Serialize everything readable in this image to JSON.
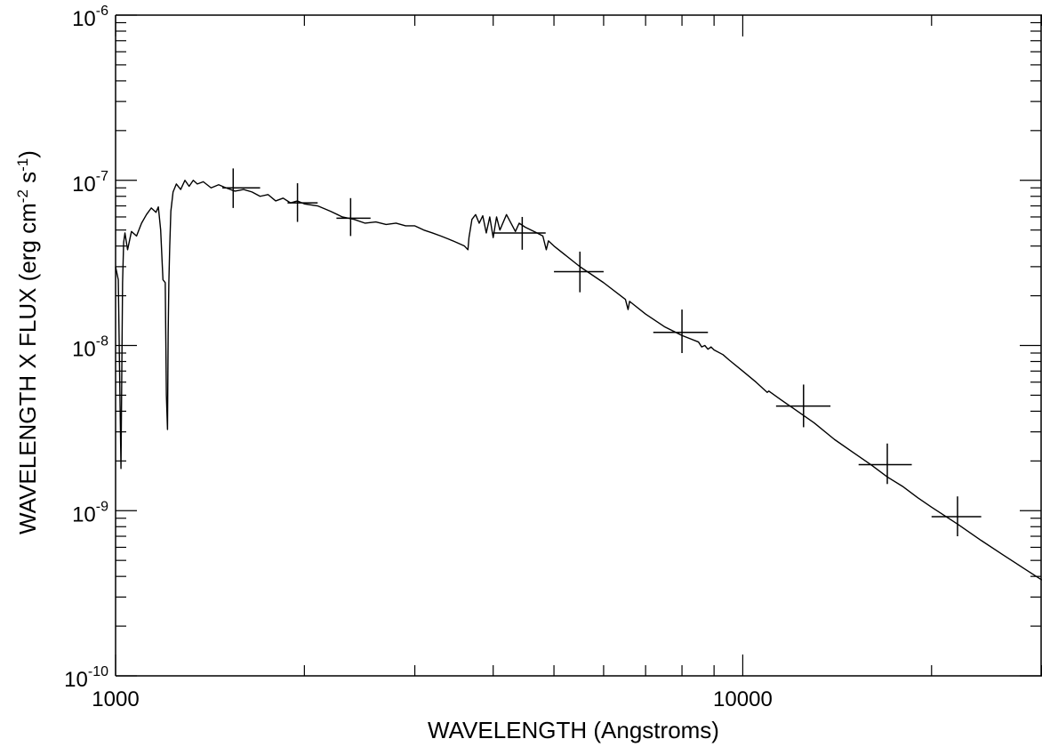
{
  "chart_data": {
    "type": "line",
    "title": "",
    "xlabel": "WAVELENGTH (Angstroms)",
    "ylabel_parts": [
      {
        "text": "WAVELENGTH X FLUX (erg cm",
        "sup": false
      },
      {
        "text": "-2",
        "sup": true
      },
      {
        "text": " s",
        "sup": false
      },
      {
        "text": "-1",
        "sup": true
      },
      {
        "text": ")",
        "sup": false
      }
    ],
    "x_scale": "log",
    "y_scale": "log",
    "xlim": [
      1000,
      30000
    ],
    "ylim": [
      1e-10,
      1e-06
    ],
    "x_ticks": [
      {
        "value": 1000,
        "label": "1000"
      },
      {
        "value": 10000,
        "label": "10000"
      }
    ],
    "y_ticks": [
      {
        "value": 1e-10,
        "base": "10",
        "exp": "-10"
      },
      {
        "value": 1e-09,
        "base": "10",
        "exp": "-9"
      },
      {
        "value": 1e-08,
        "base": "10",
        "exp": "-8"
      },
      {
        "value": 1e-07,
        "base": "10",
        "exp": "-7"
      },
      {
        "value": 1e-06,
        "base": "10",
        "exp": "-6"
      }
    ],
    "grid": false,
    "legend": "none",
    "series": [
      {
        "kind": "line",
        "x": [
          1000,
          1010,
          1020,
          1026,
          1030,
          1035,
          1045,
          1060,
          1080,
          1100,
          1120,
          1140,
          1160,
          1170,
          1180,
          1190,
          1200,
          1205,
          1210,
          1213,
          1216,
          1220,
          1225,
          1235,
          1250,
          1270,
          1290,
          1310,
          1330,
          1350,
          1380,
          1420,
          1460,
          1500,
          1550,
          1600,
          1650,
          1700,
          1750,
          1800,
          1850,
          1900,
          1950,
          2000,
          2100,
          2200,
          2300,
          2400,
          2500,
          2600,
          2700,
          2800,
          2900,
          3000,
          3100,
          3200,
          3300,
          3400,
          3500,
          3600,
          3646,
          3660,
          3700,
          3750,
          3800,
          3850,
          3900,
          3950,
          4000,
          4050,
          4100,
          4200,
          4340,
          4400,
          4500,
          4700,
          4800,
          4861,
          4900,
          5000,
          5500,
          6000,
          6500,
          6563,
          6600,
          7000,
          7500,
          8000,
          8500,
          8600,
          8700,
          8800,
          8900,
          9000,
          9300,
          9500,
          10000,
          10500,
          10940,
          11000,
          11500,
          12000,
          13000,
          14000,
          15000,
          16000,
          17000,
          18000,
          19000,
          20000,
          22000,
          24000,
          26000,
          28000,
          30000
        ],
        "y": [
          3e-08,
          2.5e-08,
          1.8e-09,
          2.4e-08,
          4.2e-08,
          4.8e-08,
          3.8e-08,
          4.9e-08,
          4.6e-08,
          5.5e-08,
          6.2e-08,
          6.8e-08,
          6.4e-08,
          6.9e-08,
          5e-08,
          2.5e-08,
          2.4e-08,
          5e-09,
          3.1e-09,
          1.2e-08,
          2.4e-08,
          4e-08,
          6.5e-08,
          8.5e-08,
          9.5e-08,
          8.8e-08,
          1e-07,
          9.2e-08,
          1e-07,
          9.5e-08,
          9.8e-08,
          9e-08,
          9.4e-08,
          9e-08,
          8.6e-08,
          8.8e-08,
          8.5e-08,
          8e-08,
          8.2e-08,
          7.5e-08,
          7.8e-08,
          7.3e-08,
          7.5e-08,
          7.2e-08,
          7e-08,
          6.5e-08,
          6e-08,
          5.8e-08,
          5.5e-08,
          5.6e-08,
          5.4e-08,
          5.5e-08,
          5.3e-08,
          5.3e-08,
          5e-08,
          4.8e-08,
          4.6e-08,
          4.4e-08,
          4.2e-08,
          4e-08,
          3.8e-08,
          4.5e-08,
          5.8e-08,
          6.2e-08,
          5.5e-08,
          6.1e-08,
          4.8e-08,
          6e-08,
          4.5e-08,
          6e-08,
          5e-08,
          6.2e-08,
          4.9e-08,
          5.5e-08,
          5.2e-08,
          4.8e-08,
          4.6e-08,
          3.8e-08,
          4.3e-08,
          4e-08,
          3e-08,
          2.4e-08,
          1.9e-08,
          1.65e-08,
          1.85e-08,
          1.55e-08,
          1.3e-08,
          1.15e-08,
          1.05e-08,
          9.8e-09,
          1e-08,
          9.5e-09,
          9.8e-09,
          9.4e-09,
          8.8e-09,
          8.2e-09,
          7e-09,
          6e-09,
          5.2e-09,
          5.3e-09,
          4.7e-09,
          4.2e-09,
          3.4e-09,
          2.7e-09,
          2.25e-09,
          1.9e-09,
          1.6e-09,
          1.4e-09,
          1.2e-09,
          1.05e-09,
          8.3e-10,
          6.6e-10,
          5.4e-10,
          4.5e-10,
          3.8e-10
        ]
      },
      {
        "kind": "errorbars",
        "points": [
          {
            "x": 1540,
            "y": 9e-08,
            "xerr": [
              1480,
              1700
            ],
            "yerr": [
              6.8e-08,
              1.18e-07
            ]
          },
          {
            "x": 1950,
            "y": 7.3e-08,
            "xerr": [
              1880,
              2100
            ],
            "yerr": [
              5.6e-08,
              9.6e-08
            ]
          },
          {
            "x": 2370,
            "y": 5.9e-08,
            "xerr": [
              2250,
              2550
            ],
            "yerr": [
              4.6e-08,
              7.8e-08
            ]
          },
          {
            "x": 4450,
            "y": 4.8e-08,
            "xerr": [
              4000,
              4850
            ],
            "yerr": [
              3.8e-08,
              6e-08
            ]
          },
          {
            "x": 5500,
            "y": 2.8e-08,
            "xerr": [
              5000,
              6000
            ],
            "yerr": [
              2.1e-08,
              3.7e-08
            ]
          },
          {
            "x": 8000,
            "y": 1.2e-08,
            "xerr": [
              7200,
              8800
            ],
            "yerr": [
              9e-09,
              1.65e-08
            ]
          },
          {
            "x": 12500,
            "y": 4.3e-09,
            "xerr": [
              11300,
              13800
            ],
            "yerr": [
              3.2e-09,
              5.8e-09
            ]
          },
          {
            "x": 17000,
            "y": 1.9e-09,
            "xerr": [
              15300,
              18600
            ],
            "yerr": [
              1.45e-09,
              2.55e-09
            ]
          },
          {
            "x": 22000,
            "y": 9.2e-10,
            "xerr": [
              20000,
              24000
            ],
            "yerr": [
              7e-10,
              1.22e-09
            ]
          }
        ]
      }
    ]
  }
}
